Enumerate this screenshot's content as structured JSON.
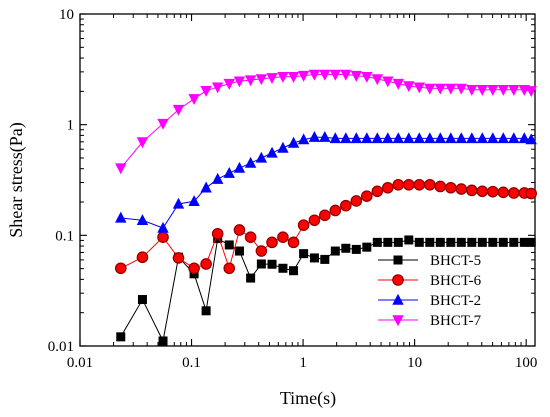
{
  "chart_data": {
    "type": "scatter",
    "xlabel": "Time(s)",
    "ylabel": "Shear stress(Pa)",
    "xscale": "log",
    "yscale": "log",
    "xlim": [
      0.01,
      120
    ],
    "ylim": [
      0.01,
      10
    ],
    "xticks": [
      0.01,
      0.1,
      1,
      10,
      100
    ],
    "xtick_labels": [
      "0.01",
      "0.1",
      "1",
      "10",
      "100"
    ],
    "yticks": [
      0.01,
      0.1,
      1,
      10
    ],
    "ytick_labels": [
      "0.01",
      "0.1",
      "1",
      "10"
    ],
    "grid": false,
    "legend_position": "bottom-right",
    "series": [
      {
        "name": "BHCT-5",
        "color": "#000000",
        "marker": "square",
        "x": [
          0.0232,
          0.0363,
          0.0555,
          0.0764,
          0.1054,
          0.1351,
          0.1715,
          0.2178,
          0.2689,
          0.3386,
          0.4226,
          0.5268,
          0.6596,
          0.8213,
          1.011,
          1.264,
          1.566,
          1.945,
          2.416,
          3.0,
          3.727,
          4.629,
          5.749,
          7.14,
          8.868,
          11.01,
          13.68,
          16.99,
          21.1,
          26.21,
          32.55,
          40.43,
          50.21,
          62.36,
          77.45,
          96.2,
          110.9
        ],
        "y": [
          0.0121,
          0.0263,
          0.0111,
          0.0634,
          0.0449,
          0.0208,
          0.0935,
          0.0819,
          0.0721,
          0.0411,
          0.0551,
          0.0548,
          0.0504,
          0.0479,
          0.0683,
          0.0625,
          0.0606,
          0.0721,
          0.0764,
          0.0746,
          0.0782,
          0.0864,
          0.0864,
          0.0864,
          0.0908,
          0.0864,
          0.0864,
          0.0864,
          0.0864,
          0.0864,
          0.0864,
          0.0864,
          0.0864,
          0.0864,
          0.0864,
          0.0864,
          0.0864
        ]
      },
      {
        "name": "BHCT-6",
        "color": "#ff0000",
        "marker": "circle",
        "x": [
          0.0232,
          0.0363,
          0.0555,
          0.0764,
          0.1054,
          0.1351,
          0.1715,
          0.2178,
          0.2689,
          0.3386,
          0.4226,
          0.5268,
          0.6596,
          0.8213,
          1.011,
          1.264,
          1.566,
          1.945,
          2.416,
          3.0,
          3.727,
          4.629,
          5.749,
          7.14,
          8.868,
          11.01,
          13.68,
          16.99,
          21.1,
          26.21,
          32.55,
          40.43,
          50.21,
          62.36,
          77.45,
          96.2,
          110.9
        ],
        "y": [
          0.0504,
          0.0634,
          0.0962,
          0.0625,
          0.0504,
          0.0551,
          0.1033,
          0.0504,
          0.1118,
          0.0962,
          0.0721,
          0.0864,
          0.0962,
          0.0864,
          0.1236,
          0.1368,
          0.1516,
          0.1677,
          0.1854,
          0.2045,
          0.226,
          0.25,
          0.2691,
          0.2863,
          0.2863,
          0.2863,
          0.2863,
          0.2764,
          0.2691,
          0.2619,
          0.255,
          0.25,
          0.2481,
          0.2448,
          0.2414,
          0.2414,
          0.2386
        ]
      },
      {
        "name": "BHCT-2",
        "color": "#0000ff",
        "marker": "triangle-up",
        "x": [
          0.0232,
          0.0363,
          0.0555,
          0.0764,
          0.1054,
          0.1351,
          0.1715,
          0.2178,
          0.2689,
          0.3386,
          0.4226,
          0.5268,
          0.6596,
          0.8213,
          1.011,
          1.264,
          1.566,
          1.945,
          2.416,
          3.0,
          3.727,
          4.629,
          5.749,
          7.14,
          8.868,
          11.01,
          13.68,
          16.99,
          21.1,
          26.21,
          32.55,
          40.43,
          50.21,
          62.36,
          77.45,
          96.2,
          110.9
        ],
        "y": [
          0.1438,
          0.1368,
          0.1164,
          0.192,
          0.2029,
          0.2691,
          0.3221,
          0.3644,
          0.405,
          0.4498,
          0.5,
          0.5557,
          0.6154,
          0.6827,
          0.7328,
          0.7706,
          0.7706,
          0.7516,
          0.7516,
          0.7516,
          0.7516,
          0.7516,
          0.7516,
          0.7516,
          0.7516,
          0.7516,
          0.7516,
          0.7516,
          0.7516,
          0.7516,
          0.7516,
          0.7516,
          0.7516,
          0.7516,
          0.7516,
          0.7516,
          0.7328
        ]
      },
      {
        "name": "BHCT-7",
        "color": "#ff00ff",
        "marker": "triangle-down",
        "x": [
          0.0232,
          0.0363,
          0.0555,
          0.0764,
          0.1054,
          0.1351,
          0.1715,
          0.2178,
          0.2689,
          0.3386,
          0.4226,
          0.5268,
          0.6596,
          0.8213,
          1.011,
          1.264,
          1.566,
          1.945,
          2.416,
          3.0,
          3.727,
          4.629,
          5.749,
          7.14,
          8.868,
          11.01,
          13.68,
          16.99,
          21.1,
          26.21,
          32.55,
          40.43,
          50.21,
          62.36,
          77.45,
          96.2,
          110.9
        ],
        "y": [
          0.4057,
          0.6973,
          1.0232,
          1.3688,
          1.7127,
          2.0264,
          2.18,
          2.3486,
          2.4727,
          2.5303,
          2.5893,
          2.6499,
          2.7112,
          2.7112,
          2.7744,
          2.8393,
          2.8393,
          2.8393,
          2.8393,
          2.7744,
          2.7112,
          2.5893,
          2.4727,
          2.3486,
          2.2363,
          2.18,
          2.125,
          2.125,
          2.125,
          2.125,
          2.072,
          2.072,
          2.072,
          2.072,
          2.072,
          2.072,
          2.0206
        ]
      }
    ]
  }
}
